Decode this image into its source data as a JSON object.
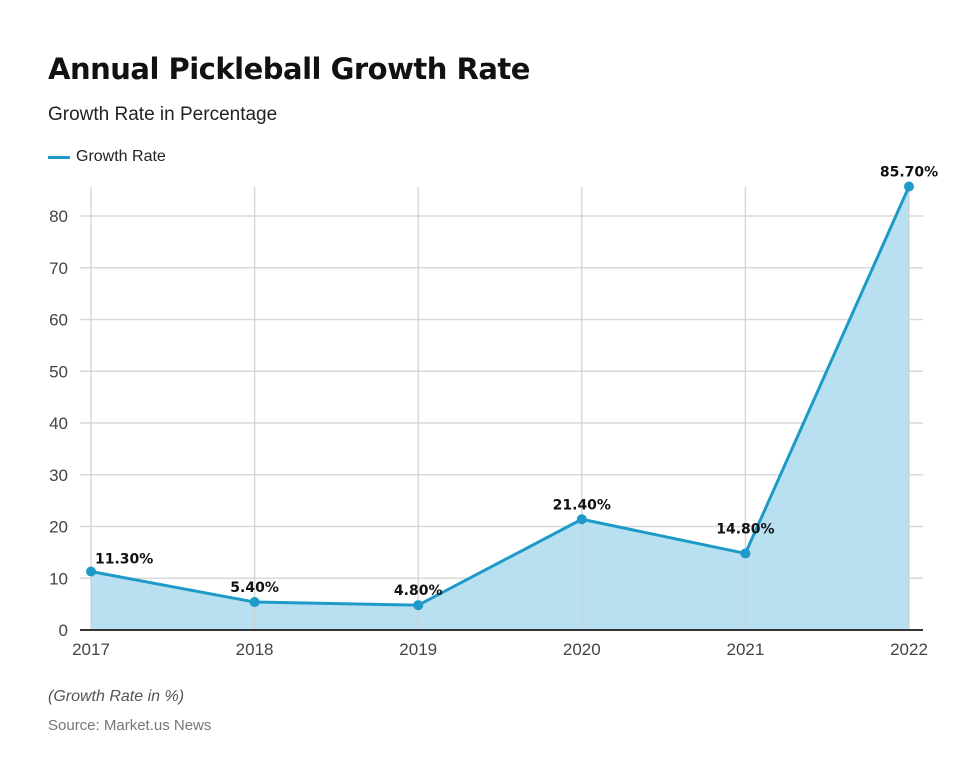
{
  "chart_data": {
    "type": "area",
    "title": "Annual Pickleball Growth Rate",
    "subtitle": "Growth Rate in Percentage",
    "xlabel": "",
    "ylabel": "",
    "categories": [
      "2017",
      "2018",
      "2019",
      "2020",
      "2021",
      "2022"
    ],
    "series": [
      {
        "name": "Growth Rate",
        "values": [
          11.3,
          5.4,
          4.8,
          21.4,
          14.8,
          85.7
        ],
        "labels": [
          "11.30%",
          "5.40%",
          "4.80%",
          "21.40%",
          "14.80%",
          "85.70%"
        ],
        "color": "#1e9ac8",
        "fill": "#b8e0f0"
      }
    ],
    "yticks": [
      0,
      10,
      20,
      30,
      40,
      50,
      60,
      70,
      80
    ],
    "ylim": [
      0,
      86
    ],
    "grid": true,
    "legend_position": "top-left",
    "footnote": "(Growth Rate in %)",
    "source": "Source: Market.us News"
  }
}
